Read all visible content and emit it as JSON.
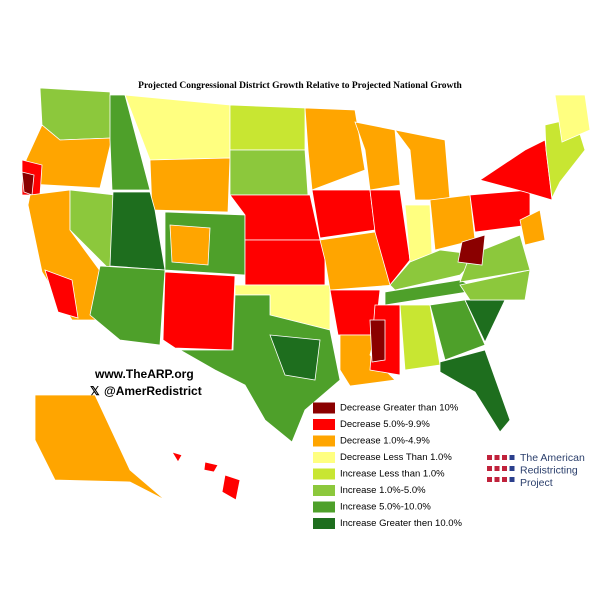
{
  "title": "Projected Congressional District Growth Relative to Projected National Growth",
  "website": "www.TheARP.org",
  "handle": "@AmerRedistrict",
  "legend": [
    {
      "label": "Decrease Greater than 10%",
      "color": "#8b0000"
    },
    {
      "label": "Decrease 5.0%-9.9%",
      "color": "#ff0000"
    },
    {
      "label": "Decrease 1.0%-4.9%",
      "color": "#ffa500"
    },
    {
      "label": "Decrease Less Than 1.0%",
      "color": "#ffff80"
    },
    {
      "label": "Increase Less than 1.0%",
      "color": "#c8e632"
    },
    {
      "label": "Increase 1.0%-5.0%",
      "color": "#8cc83c"
    },
    {
      "label": "Increase 5.0%-10.0%",
      "color": "#4ea02a"
    },
    {
      "label": "Increase Greater then 10.0%",
      "color": "#1e6e1e"
    }
  ],
  "logo": {
    "lines": [
      "The American",
      "Redistricting",
      "Project"
    ]
  }
}
